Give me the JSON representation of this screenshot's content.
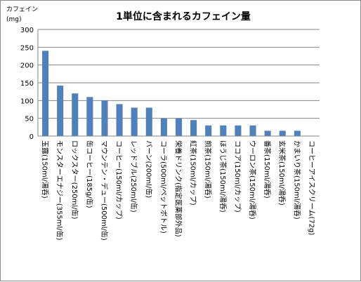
{
  "chart_data": {
    "type": "bar",
    "title": "1単位に含まれるカフェイン量",
    "ylabel_line1": "カフェイン",
    "ylabel_line2": "(mg)",
    "xlabel": "",
    "ylim": [
      0,
      300
    ],
    "yticks": [
      0,
      50,
      100,
      150,
      200,
      250,
      300
    ],
    "grid": true,
    "bar_color": "#4f81bd",
    "grid_color": "#868686",
    "categories": [
      "玉露(150ml/湯呑)",
      "モンスターエナジー(355ml/缶)",
      "ロックスター(250ml/缶)",
      "缶コーヒー(185g/缶)",
      "マウンテン・デュー(500ml/缶)",
      "コーヒー(150ml/カップ)",
      "レッドブル(250ml/缶)",
      "バーン(200ml/缶)",
      "コーラ(500ml/ペットボトル)",
      "栄養ドリンク(指定医薬部外品)",
      "紅茶(150ml/カップ)",
      "煎茶(150ml/湯呑)",
      "ほうじ茶(150ml/湯呑)",
      "ココア(150ml/カップ)",
      "ウーロン茶(150ml/湯呑)",
      "番茶(150ml/湯呑)",
      "玄米茶(150ml/湯呑)",
      "かまいり茶(150ml/湯呑)",
      "コーヒーアイスクリーム(72g)"
    ],
    "values": [
      240,
      142,
      120,
      110,
      100,
      90,
      80,
      80,
      50,
      50,
      45,
      30,
      30,
      30,
      30,
      15,
      15,
      15,
      0
    ]
  }
}
